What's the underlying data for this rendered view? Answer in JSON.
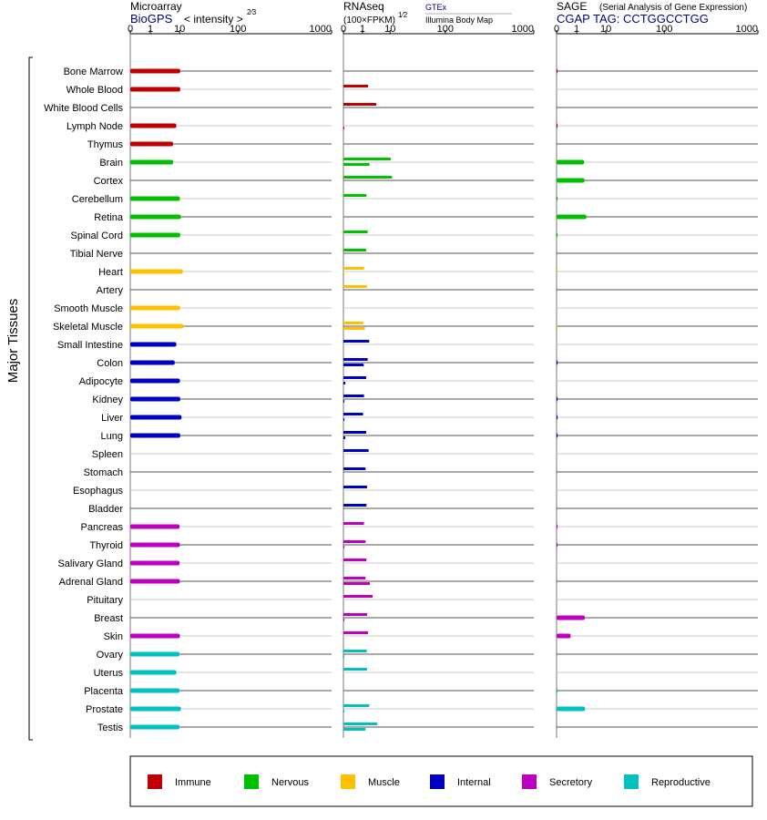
{
  "header": {
    "microarray": {
      "title": "Microarray",
      "source": "BioGPS",
      "scale_label": "< intensity >",
      "scale_exp": "2⁄3"
    },
    "rnaseq": {
      "title": "RNAseq",
      "scale_label": "(100×FPKM)",
      "scale_exp": "1⁄2",
      "src1": "GTEx",
      "src2": "Illumina Body Map"
    },
    "sage": {
      "title": "SAGE",
      "subtitle": "(Serial Analysis of Gene Expression)",
      "tag": "CGAP TAG: CCTGGCCTGG"
    }
  },
  "colors": {
    "accent_blue": "#000080",
    "axis": "#000000",
    "gridline": "#b0b0b0"
  },
  "ylabel": "Major Tissues",
  "chart_data": {
    "type": "bar",
    "tick_labels": [
      "0",
      "1",
      "10",
      "100",
      "1000"
    ],
    "tick_values": [
      0,
      1,
      10,
      100,
      1000
    ],
    "xlim": [
      0,
      1000
    ],
    "categories": [
      "Bone Marrow",
      "Whole Blood",
      "White Blood Cells",
      "Lymph Node",
      "Thymus",
      "Brain",
      "Cortex",
      "Cerebellum",
      "Retina",
      "Spinal Cord",
      "Tibial Nerve",
      "Heart",
      "Artery",
      "Smooth Muscle",
      "Skeletal Muscle",
      "Small Intestine",
      "Colon",
      "Adipocyte",
      "Kidney",
      "Liver",
      "Lung",
      "Spleen",
      "Stomach",
      "Esophagus",
      "Bladder",
      "Pancreas",
      "Thyroid",
      "Salivary Gland",
      "Adrenal Gland",
      "Pituitary",
      "Breast",
      "Skin",
      "Ovary",
      "Uterus",
      "Placenta",
      "Prostate",
      "Testis"
    ],
    "groups": [
      "Immune",
      "Immune",
      "Immune",
      "Immune",
      "Immune",
      "Nervous",
      "Nervous",
      "Nervous",
      "Nervous",
      "Nervous",
      "Nervous",
      "Muscle",
      "Muscle",
      "Muscle",
      "Muscle",
      "Internal",
      "Internal",
      "Internal",
      "Internal",
      "Internal",
      "Internal",
      "Internal",
      "Internal",
      "Internal",
      "Internal",
      "Secretory",
      "Secretory",
      "Secretory",
      "Secretory",
      "Secretory",
      "Secretory",
      "Secretory",
      "Reproductive",
      "Reproductive",
      "Reproductive",
      "Reproductive",
      "Reproductive"
    ],
    "legend": [
      {
        "name": "Immune",
        "color": "#c00000"
      },
      {
        "name": "Nervous",
        "color": "#00c000"
      },
      {
        "name": "Muscle",
        "color": "#ffc000"
      },
      {
        "name": "Internal",
        "color": "#0000c0"
      },
      {
        "name": "Secretory",
        "color": "#c000c0"
      },
      {
        "name": "Reproductive",
        "color": "#00c0c0"
      }
    ],
    "legend_position": "bottom",
    "series": [
      {
        "key": "microarray",
        "values": [
          11,
          11,
          null,
          9,
          8,
          8,
          null,
          10.5,
          12,
          11,
          null,
          15,
          null,
          11,
          16,
          9,
          8.5,
          10.5,
          11,
          13,
          11,
          null,
          null,
          null,
          null,
          10,
          10.5,
          10,
          10.5,
          null,
          null,
          10.5,
          10,
          9,
          10,
          12,
          10
        ]
      },
      {
        "key": "rnaseq_gtex",
        "values": [
          null,
          2.8,
          5.5,
          null,
          null,
          11,
          13,
          2.3,
          null,
          2.7,
          2.2,
          1.5,
          2.5,
          null,
          1.3,
          3.2,
          2.7,
          2.2,
          1.5,
          1.2,
          2.2,
          3.0,
          2.0,
          2.5,
          2.3,
          1.5,
          2.0,
          2.3,
          2.0,
          4.3,
          2.5,
          2.8,
          2.4,
          2.5,
          null,
          3.2,
          5.8
        ]
      },
      {
        "key": "rnaseq_ibm",
        "values": [
          null,
          null,
          null,
          0.05,
          null,
          3.3,
          null,
          null,
          null,
          null,
          null,
          0.05,
          null,
          null,
          1.8,
          null,
          1.4,
          0.1,
          0.05,
          0.05,
          0.1,
          null,
          null,
          null,
          null,
          null,
          0.05,
          null,
          3.4,
          null,
          0.05,
          null,
          0.05,
          null,
          null,
          0.05,
          2.0
        ]
      },
      {
        "key": "sage",
        "values": [
          0.05,
          null,
          null,
          0.05,
          null,
          3.3,
          3.4,
          0.05,
          4.0,
          0.05,
          null,
          0.02,
          null,
          null,
          0.02,
          null,
          0.05,
          null,
          0.05,
          0.05,
          0.05,
          null,
          null,
          null,
          null,
          0.05,
          0.05,
          null,
          null,
          null,
          3.5,
          0.7,
          null,
          null,
          0.05,
          3.6,
          null
        ]
      }
    ]
  }
}
